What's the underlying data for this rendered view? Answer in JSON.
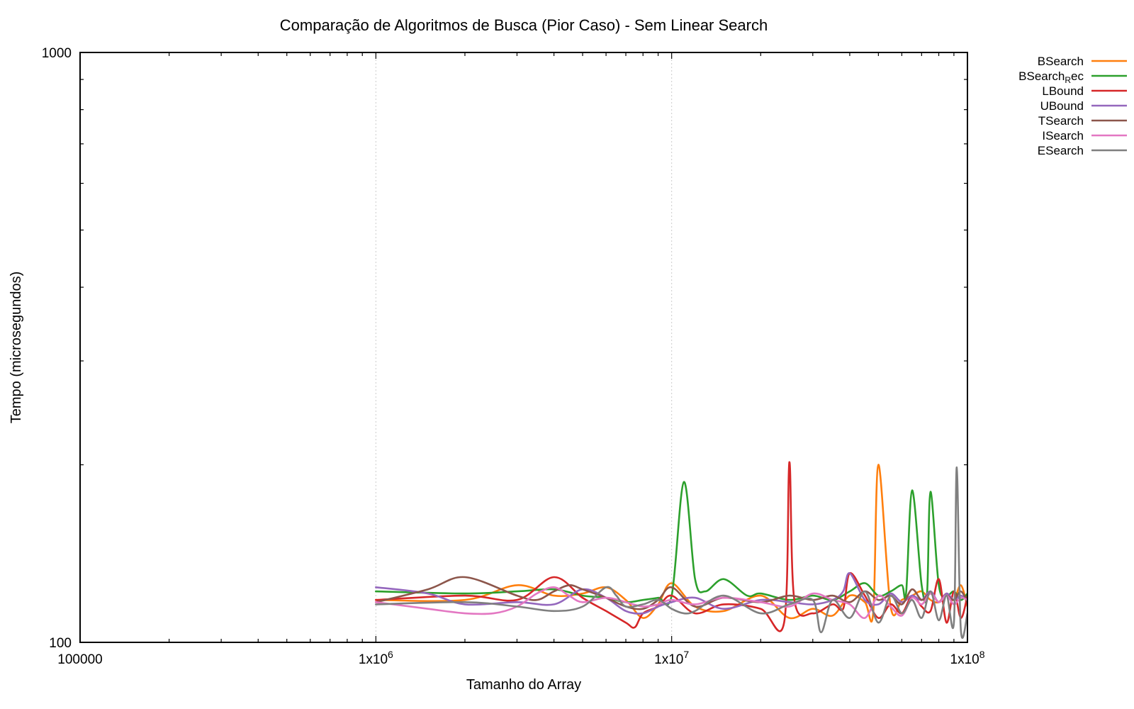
{
  "chart_data": {
    "type": "line",
    "title": "Comparação de Algoritmos de Busca (Pior Caso) - Sem Linear Search",
    "xlabel": "Tamanho do Array",
    "ylabel": "Tempo (microsegundos)",
    "x_scale": "log",
    "y_scale": "log",
    "xlim": [
      100000,
      100000000
    ],
    "ylim": [
      100,
      1000
    ],
    "x_ticks": [
      {
        "value": 100000,
        "label": "100000"
      },
      {
        "value": 1000000,
        "label": "1x10",
        "exp": "6"
      },
      {
        "value": 10000000,
        "label": "1x10",
        "exp": "7"
      },
      {
        "value": 100000000,
        "label": "1x10",
        "exp": "8"
      }
    ],
    "y_ticks": [
      {
        "value": 100,
        "label": "100"
      },
      {
        "value": 1000,
        "label": "1000"
      }
    ],
    "grid": "vertical dotted at major x ticks",
    "legend_position": "outside right, top",
    "series": [
      {
        "name": "BSearch",
        "legend_label": "BSearch",
        "color": "#ff7f0e",
        "x": [
          1000000,
          2000000,
          3000000,
          4000000,
          5000000,
          6000000,
          7000000,
          8000000,
          9000000,
          10000000,
          12000000,
          15000000,
          20000000,
          25000000,
          30000000,
          35000000,
          40000000,
          45000000,
          48000000,
          50000000,
          55000000,
          60000000,
          65000000,
          70000000,
          75000000,
          80000000,
          85000000,
          90000000,
          95000000,
          100000000
        ],
        "y": [
          118,
          118,
          125,
          120,
          121,
          124,
          118,
          110,
          116,
          126,
          115,
          113,
          120,
          110,
          114,
          111,
          120,
          117,
          112,
          200,
          115,
          118,
          120,
          122,
          118,
          117,
          121,
          118,
          125,
          115
        ]
      },
      {
        "name": "BSearch_Rec",
        "legend_label": "BSearch",
        "legend_sub": "R",
        "legend_suffix": "ec",
        "color": "#2ca02c",
        "x": [
          1000000,
          2000000,
          3000000,
          4000000,
          5000000,
          6000000,
          7000000,
          8000000,
          9000000,
          10000000,
          11000000,
          12000000,
          13000000,
          15000000,
          18000000,
          20000000,
          25000000,
          30000000,
          35000000,
          40000000,
          45000000,
          50000000,
          55000000,
          60000000,
          62000000,
          65000000,
          70000000,
          73000000,
          75000000,
          80000000,
          85000000,
          90000000,
          95000000,
          100000000
        ],
        "y": [
          122,
          121,
          122,
          123,
          120,
          119,
          117,
          118,
          119,
          120,
          187,
          128,
          122,
          128,
          120,
          121,
          118,
          120,
          118,
          122,
          126,
          120,
          122,
          125,
          121,
          181,
          125,
          121,
          180,
          125,
          120,
          122,
          118,
          121
        ]
      },
      {
        "name": "LBound",
        "legend_label": "LBound",
        "color": "#d62728",
        "x": [
          1000000,
          2000000,
          3000000,
          4000000,
          5000000,
          6000000,
          7000000,
          7500000,
          8000000,
          9000000,
          10000000,
          12000000,
          15000000,
          20000000,
          24000000,
          25000000,
          26000000,
          30000000,
          35000000,
          38000000,
          40000000,
          45000000,
          50000000,
          55000000,
          60000000,
          65000000,
          70000000,
          75000000,
          80000000,
          85000000,
          90000000,
          95000000,
          100000000
        ],
        "y": [
          118,
          120,
          118,
          129,
          119,
          113,
          108,
          106,
          112,
          115,
          120,
          112,
          116,
          114,
          108,
          202,
          118,
          112,
          116,
          114,
          131,
          120,
          110,
          116,
          112,
          120,
          115,
          113,
          128,
          108,
          122,
          110,
          120
        ]
      },
      {
        "name": "UBound",
        "legend_label": "UBound",
        "color": "#9467bd",
        "x": [
          1000000,
          1500000,
          2000000,
          3000000,
          4000000,
          5000000,
          6000000,
          7000000,
          8000000,
          9000000,
          10000000,
          12000000,
          15000000,
          20000000,
          25000000,
          30000000,
          35000000,
          38000000,
          40000000,
          45000000,
          50000000,
          55000000,
          60000000,
          65000000,
          70000000,
          75000000,
          80000000,
          85000000,
          90000000,
          95000000,
          100000000
        ],
        "y": [
          124,
          121,
          116,
          117,
          116,
          123,
          119,
          113,
          112,
          115,
          117,
          119,
          114,
          118,
          117,
          116,
          118,
          122,
          131,
          118,
          116,
          121,
          117,
          120,
          118,
          122,
          117,
          121,
          118,
          120,
          118
        ]
      },
      {
        "name": "TSearch",
        "legend_label": "TSearch",
        "color": "#8c564b",
        "x": [
          1000000,
          1500000,
          2000000,
          3000000,
          3500000,
          4000000,
          4500000,
          5000000,
          6000000,
          7000000,
          8000000,
          9000000,
          10000000,
          12000000,
          15000000,
          20000000,
          25000000,
          30000000,
          35000000,
          40000000,
          45000000,
          50000000,
          55000000,
          60000000,
          65000000,
          70000000,
          75000000,
          80000000,
          85000000,
          90000000,
          95000000,
          100000000
        ],
        "y": [
          117,
          123,
          129,
          120,
          118,
          122,
          125,
          123,
          119,
          115,
          114,
          118,
          124,
          115,
          119,
          117,
          120,
          118,
          120,
          117,
          122,
          118,
          120,
          116,
          123,
          118,
          121,
          117,
          120,
          118,
          122,
          117
        ]
      },
      {
        "name": "ISearch",
        "legend_label": "ISearch",
        "color": "#e377c2",
        "x": [
          1000000,
          1500000,
          2000000,
          2500000,
          3000000,
          3500000,
          4000000,
          4500000,
          5000000,
          6000000,
          7000000,
          8000000,
          9000000,
          10000000,
          12000000,
          15000000,
          20000000,
          25000000,
          30000000,
          35000000,
          40000000,
          45000000,
          50000000,
          55000000,
          60000000,
          65000000,
          70000000,
          75000000,
          80000000,
          85000000,
          90000000,
          95000000,
          100000000
        ],
        "y": [
          117,
          114,
          112,
          112,
          115,
          121,
          124,
          120,
          117,
          119,
          117,
          115,
          116,
          118,
          116,
          119,
          117,
          115,
          121,
          118,
          116,
          110,
          120,
          115,
          111,
          119,
          116,
          121,
          117,
          120,
          116,
          119,
          118
        ]
      },
      {
        "name": "ESearch",
        "legend_label": "ESearch",
        "color": "#7f7f7f",
        "x": [
          1000000,
          2000000,
          3000000,
          4000000,
          5000000,
          6000000,
          6500000,
          7000000,
          8000000,
          9000000,
          10000000,
          11000000,
          12000000,
          15000000,
          20000000,
          25000000,
          30000000,
          32000000,
          35000000,
          40000000,
          45000000,
          50000000,
          55000000,
          60000000,
          65000000,
          70000000,
          75000000,
          80000000,
          85000000,
          90000000,
          92000000,
          95000000,
          100000000
        ],
        "y": [
          116,
          117,
          115,
          113,
          115,
          124,
          120,
          115,
          116,
          118,
          114,
          112,
          113,
          120,
          112,
          116,
          118,
          104,
          118,
          110,
          122,
          108,
          120,
          112,
          118,
          110,
          122,
          109,
          120,
          108,
          198,
          105,
          112
        ]
      }
    ]
  }
}
